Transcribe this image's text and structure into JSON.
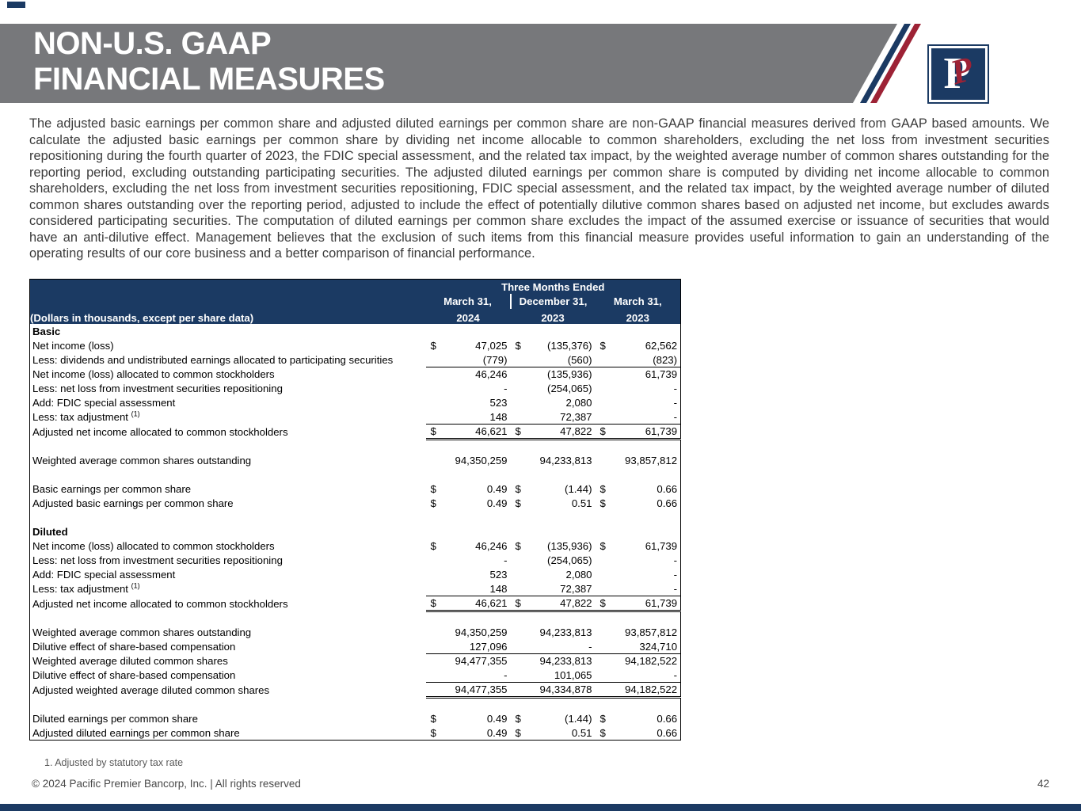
{
  "slide": {
    "title_line1": "NON-U.S. GAAP",
    "title_line2": "FINANCIAL MEASURES",
    "page_number": "42",
    "footnote": "1. Adjusted by statutory tax rate",
    "copyright": "© 2024 Pacific Premier Bancorp, Inc. | All rights reserved"
  },
  "colors": {
    "navy": "#1b3a63",
    "red": "#9d2235",
    "gray": "#77787b"
  },
  "logo": {
    "serif_letter": "P",
    "script_letter": "P"
  },
  "intro_paragraph": "The adjusted basic earnings per common share and adjusted diluted earnings per common share are non-GAAP financial measures derived from GAAP based amounts. We calculate the adjusted basic earnings per common share by dividing net income allocable to common shareholders, excluding the net loss from investment securities repositioning during the fourth quarter of 2023, the FDIC special assessment, and the related tax impact, by the weighted average number of common shares outstanding for the reporting period, excluding outstanding participating securities. The adjusted diluted earnings per common share is computed by dividing net income allocable to common shareholders, excluding the net loss from investment securities repositioning, FDIC special assessment, and the related tax impact, by the weighted average number of diluted common shares outstanding over the reporting period, adjusted to include the effect of potentially dilutive common shares based on adjusted net income, but excludes awards considered participating securities. The computation of diluted earnings per common share excludes the impact of the assumed exercise or issuance of securities that would have an anti-dilutive effect. Management believes that the exclusion of such items from this financial measure provides useful information to gain an understanding of the operating results of our core business and a better comparison of financial performance.",
  "table": {
    "header": {
      "span_label": "Three Months Ended",
      "row_label": "(Dollars in thousands, except per share data)",
      "columns": [
        {
          "line1": "March 31,",
          "line2": "2024"
        },
        {
          "line1": "December 31,",
          "line2": "2023"
        },
        {
          "line1": "March 31,",
          "line2": "2023"
        }
      ]
    },
    "rows": [
      {
        "label": "Basic",
        "bold": true
      },
      {
        "label": "Net income (loss)",
        "dollar": true,
        "values": [
          "47,025",
          "(135,376)",
          "62,562"
        ]
      },
      {
        "label": "Less: dividends and undistributed earnings allocated to participating securities",
        "values": [
          "(779)",
          "(560)",
          "(823)"
        ],
        "rule": "below"
      },
      {
        "label": "Net income (loss) allocated to common stockholders",
        "values": [
          "46,246",
          "(135,936)",
          "61,739"
        ]
      },
      {
        "label": "Less: net loss from investment securities repositioning",
        "values": [
          "-",
          "(254,065)",
          "-"
        ]
      },
      {
        "label": "Add: FDIC special assessment",
        "values": [
          "523",
          "2,080",
          "-"
        ]
      },
      {
        "label": "Less: tax adjustment",
        "sup": "(1)",
        "values": [
          "148",
          "72,387",
          "-"
        ],
        "rule": "below"
      },
      {
        "label": "Adjusted net income allocated to common stockholders",
        "dollar": true,
        "values": [
          "46,621",
          "47,822",
          "61,739"
        ],
        "rule": "double-below"
      },
      {
        "blank": true
      },
      {
        "label": "Weighted average common shares outstanding",
        "values": [
          "94,350,259",
          "94,233,813",
          "93,857,812"
        ]
      },
      {
        "blank": true
      },
      {
        "label": "Basic earnings per common share",
        "dollar": true,
        "values": [
          "0.49",
          "(1.44)",
          "0.66"
        ]
      },
      {
        "label": "Adjusted basic earnings per common share",
        "dollar": true,
        "values": [
          "0.49",
          "0.51",
          "0.66"
        ]
      },
      {
        "blank": true
      },
      {
        "label": "Diluted",
        "bold": true
      },
      {
        "label": "Net income (loss) allocated to common stockholders",
        "dollar": true,
        "values": [
          "46,246",
          "(135,936)",
          "61,739"
        ]
      },
      {
        "label": "Less: net loss from investment securities repositioning",
        "values": [
          "-",
          "(254,065)",
          "-"
        ]
      },
      {
        "label": "Add: FDIC special assessment",
        "values": [
          "523",
          "2,080",
          "-"
        ]
      },
      {
        "label": "Less: tax adjustment",
        "sup": "(1)",
        "values": [
          "148",
          "72,387",
          "-"
        ],
        "rule": "below"
      },
      {
        "label": "Adjusted net income allocated to common stockholders",
        "dollar": true,
        "values": [
          "46,621",
          "47,822",
          "61,739"
        ],
        "rule": "double-below"
      },
      {
        "blank": true
      },
      {
        "label": "Weighted average common shares outstanding",
        "values": [
          "94,350,259",
          "94,233,813",
          "93,857,812"
        ]
      },
      {
        "label": "Dilutive effect of share-based compensation",
        "values": [
          "127,096",
          "-",
          "324,710"
        ],
        "rule": "below"
      },
      {
        "label": "Weighted average diluted common shares",
        "values": [
          "94,477,355",
          "94,233,813",
          "94,182,522"
        ]
      },
      {
        "label": "Dilutive effect of share-based compensation",
        "values": [
          "-",
          "101,065",
          "-"
        ],
        "rule": "below"
      },
      {
        "label": "Adjusted weighted average diluted common shares",
        "values": [
          "94,477,355",
          "94,334,878",
          "94,182,522"
        ],
        "rule": "double-below"
      },
      {
        "blank": true
      },
      {
        "label": "Diluted earnings per common share",
        "dollar": true,
        "values": [
          "0.49",
          "(1.44)",
          "0.66"
        ]
      },
      {
        "label": "Adjusted diluted earnings per common share",
        "dollar": true,
        "values": [
          "0.49",
          "0.51",
          "0.66"
        ]
      }
    ]
  }
}
